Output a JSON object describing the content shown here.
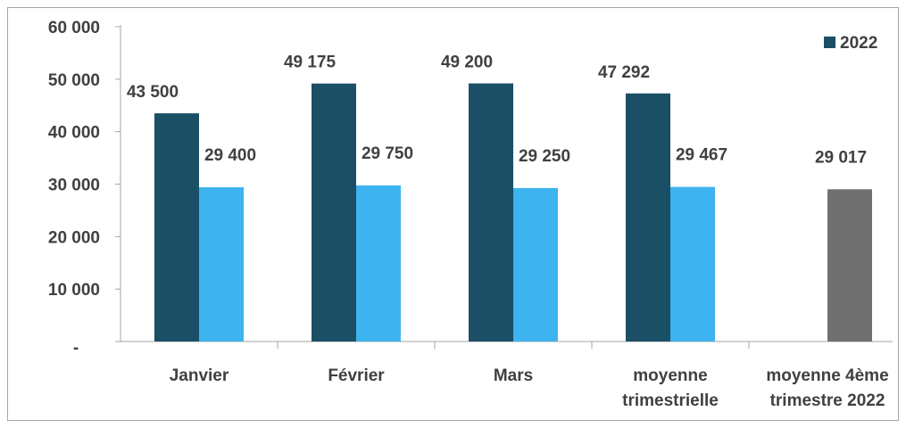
{
  "chart_data": {
    "type": "bar",
    "categories": [
      [
        "Janvier"
      ],
      [
        "Février"
      ],
      [
        "Mars"
      ],
      [
        "moyenne",
        "trimestrielle"
      ],
      [
        "moyenne 4ème",
        "trimestre 2022"
      ]
    ],
    "series": [
      {
        "name": "2022",
        "color": "#1b4f66",
        "values": [
          43500,
          49175,
          49200,
          47292,
          null
        ],
        "value_labels": [
          "43 500",
          "49 175",
          "49 200",
          "47 292",
          ""
        ]
      },
      {
        "name": "",
        "color": "#3db3ef",
        "values": [
          29400,
          29750,
          29250,
          29467,
          null
        ],
        "value_labels": [
          "29 400",
          "29 750",
          "29 250",
          "29 467",
          ""
        ]
      },
      {
        "name": "",
        "color": "#707070",
        "values": [
          null,
          null,
          null,
          null,
          29017
        ],
        "value_labels": [
          "",
          "",
          "",
          "",
          "29 017"
        ]
      }
    ],
    "yticks": [
      0,
      10000,
      20000,
      30000,
      40000,
      50000,
      60000
    ],
    "ytick_labels": [
      "-",
      "10 000",
      "20 000",
      "30 000",
      "40 000",
      "50 000",
      "60 000"
    ],
    "ylim": [
      0,
      60000
    ],
    "legend": {
      "position": "top-right",
      "entries": [
        "2022"
      ]
    },
    "grid": false,
    "title": "",
    "xlabel": "",
    "ylabel": ""
  }
}
